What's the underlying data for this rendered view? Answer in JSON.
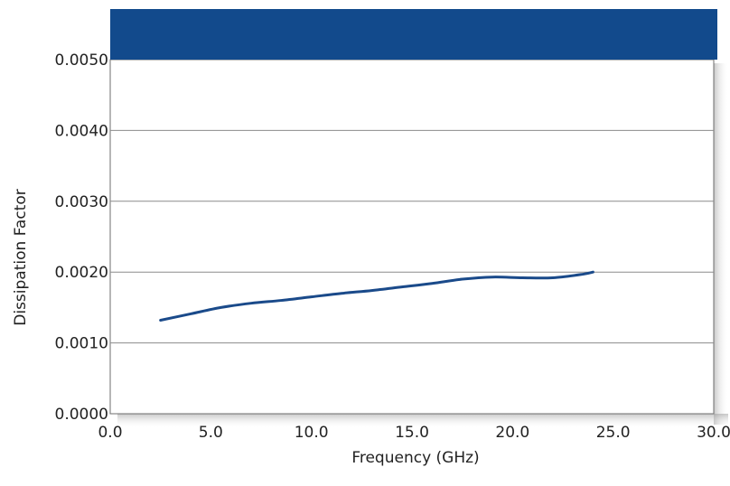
{
  "chart_data": {
    "type": "line",
    "title": "",
    "xlabel": "Frequency (GHz)",
    "ylabel": "Dissipation Factor",
    "xlim": [
      0,
      30
    ],
    "ylim": [
      0,
      0.005
    ],
    "x_ticks": [
      "0.0",
      "5.0",
      "10.0",
      "15.0",
      "20.0",
      "25.0",
      "30.0"
    ],
    "y_ticks": [
      "0.0000",
      "0.0010",
      "0.0020",
      "0.0030",
      "0.0040",
      "0.0050"
    ],
    "grid": "horizontal",
    "series": [
      {
        "name": "",
        "color": "#1a4a8a",
        "x": [
          2.5,
          4.0,
          5.5,
          7.0,
          8.5,
          10.0,
          11.5,
          13.0,
          14.5,
          16.0,
          17.5,
          19.0,
          20.5,
          22.0,
          23.5,
          24.0
        ],
        "y": [
          0.00132,
          0.00141,
          0.0015,
          0.00156,
          0.0016,
          0.00165,
          0.0017,
          0.00174,
          0.00179,
          0.00184,
          0.0019,
          0.00193,
          0.00192,
          0.00192,
          0.00197,
          0.002
        ]
      }
    ]
  },
  "colors": {
    "header_band": "#124a8c",
    "grid_line": "#8c8c8c",
    "plot_border": "#6e6e6e",
    "shadow": "#b9b9b9"
  }
}
